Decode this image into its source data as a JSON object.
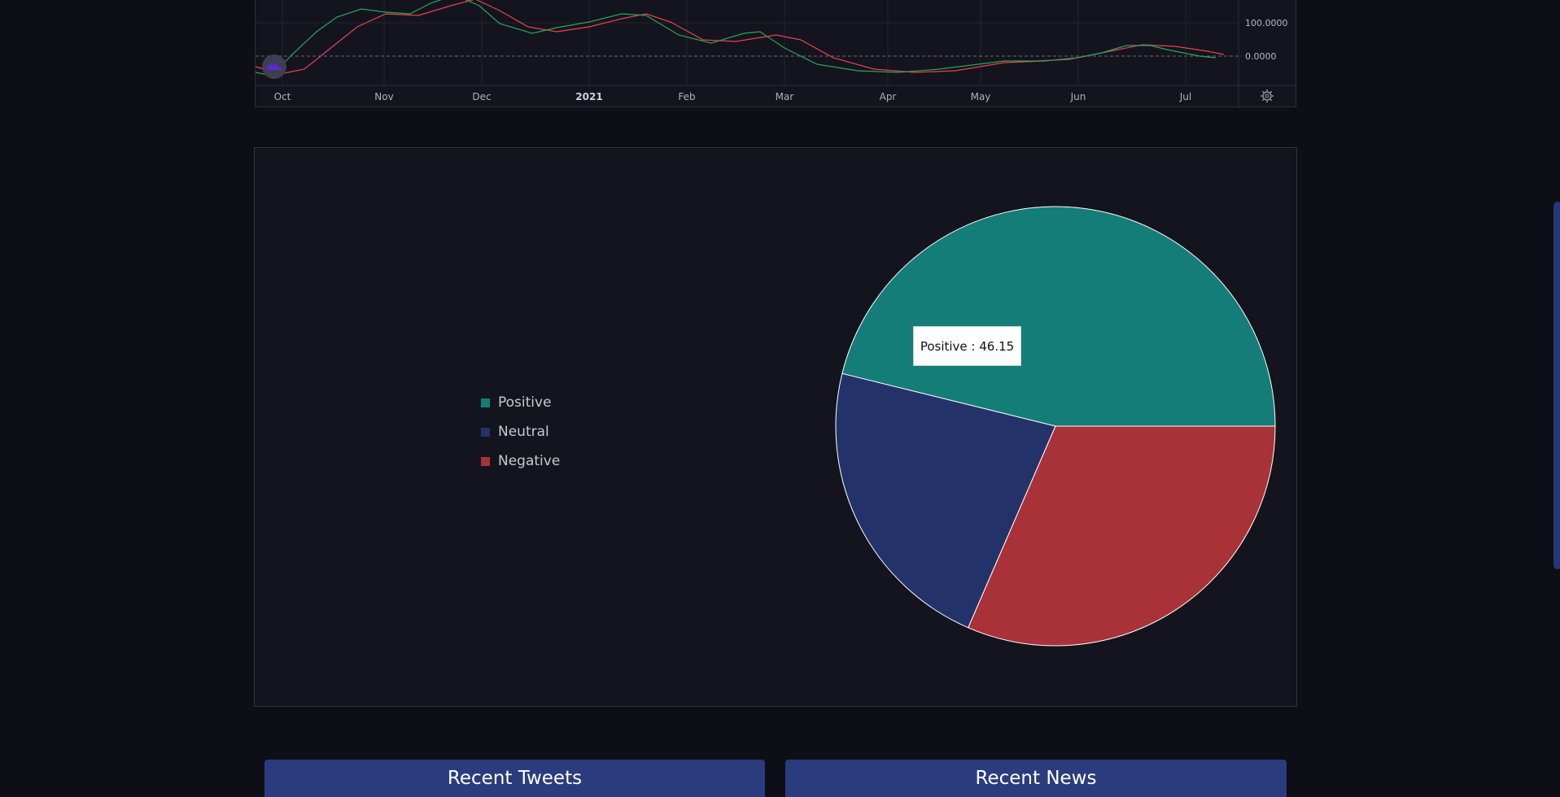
{
  "oscillator": {
    "x_labels": [
      "Oct",
      "Nov",
      "Dec",
      "2021",
      "Feb",
      "Mar",
      "Apr",
      "May",
      "Jun",
      "Jul"
    ],
    "y_labels": [
      "100.0000",
      "0.0000"
    ],
    "colors": {
      "fast": "#26a65b",
      "slow": "#e8424f",
      "logo": "#5b2ad6"
    }
  },
  "chart_data": {
    "type": "pie",
    "categories": [
      "Positive",
      "Neutral",
      "Negative"
    ],
    "values": [
      46.15,
      22.35,
      31.5
    ],
    "colors": [
      "#147d77",
      "#23336a",
      "#a93238"
    ],
    "tooltip": {
      "label": "Positive : 46.15"
    }
  },
  "cards": {
    "tweets_title": "Recent Tweets",
    "news_title": "Recent News"
  }
}
